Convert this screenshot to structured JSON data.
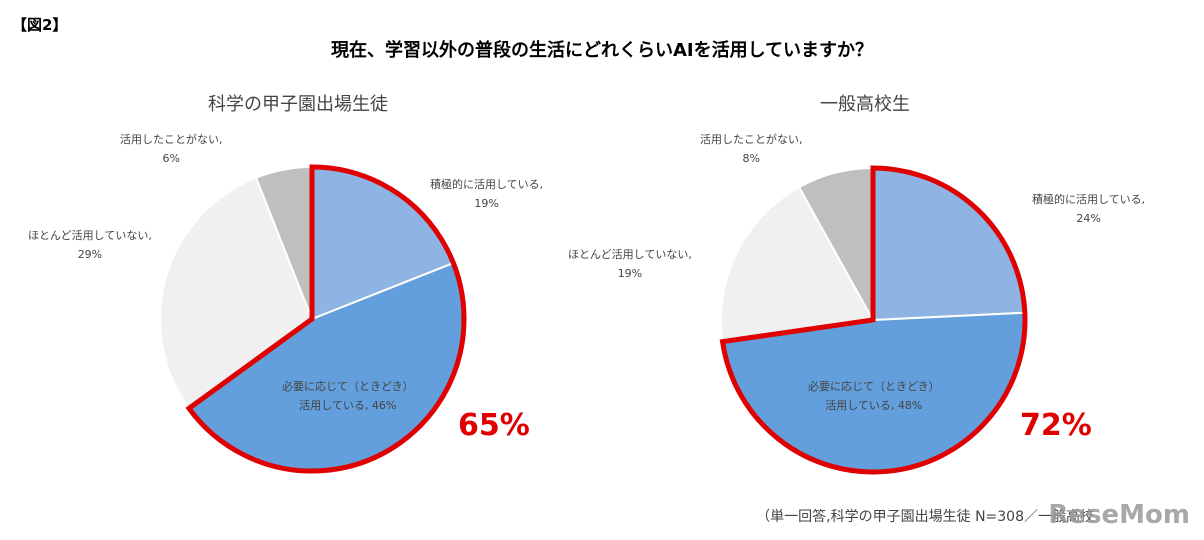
{
  "figure_label": "【図2】",
  "chart_data": [
    {
      "type": "pie",
      "title": "現在、学習以外の普段の生活にどれくらいAIを活用していますか？",
      "subtitle": "科学の甲子園出場生徒",
      "slices": [
        {
          "label": "積極的に活用している",
          "value": 19,
          "color": "#8db4e2"
        },
        {
          "label": "必要に応じて（ときどき）活用している",
          "value": 46,
          "color": "#629fdc"
        },
        {
          "label": "ほとんど活用していない",
          "value": 29,
          "color": "#f0f0f0"
        },
        {
          "label": "活用したことがない",
          "value": 6,
          "color": "#bfbfbf"
        }
      ],
      "highlight": {
        "slices": [
          0,
          1
        ],
        "total_label": "65%",
        "color": "#e00000"
      }
    },
    {
      "type": "pie",
      "subtitle": "一般高校生",
      "slices": [
        {
          "label": "積極的に活用している",
          "value": 24,
          "color": "#8db4e2"
        },
        {
          "label": "必要に応じて（ときどき）活用している",
          "value": 48,
          "color": "#629fdc"
        },
        {
          "label": "ほとんど活用していない",
          "value": 19,
          "color": "#f0f0f0"
        },
        {
          "label": "活用したことがない",
          "value": 8,
          "color": "#bfbfbf"
        }
      ],
      "highlight": {
        "slices": [
          0,
          1
        ],
        "total_label": "72%",
        "color": "#e00000"
      }
    }
  ],
  "labels": {
    "left": {
      "active": "積極的に活用している,",
      "active_pct": "19%",
      "some1": "必要に応じて（ときどき）",
      "some2": "活用している, 46%",
      "rare": "ほとんど活用していない,",
      "rare_pct": "29%",
      "never": "活用したことがない,",
      "never_pct": "6%"
    },
    "right": {
      "active": "積極的に活用している,",
      "active_pct": "24%",
      "some1": "必要に応じて（ときどき）",
      "some2": "活用している, 48%",
      "rare": "ほとんど活用していない,",
      "rare_pct": "19%",
      "never": "活用したことがない,",
      "never_pct": "8%"
    }
  },
  "footnote": "（単一回答,科学の甲子園出場生徒 N=308／一般高校",
  "watermark": "ReseMom"
}
